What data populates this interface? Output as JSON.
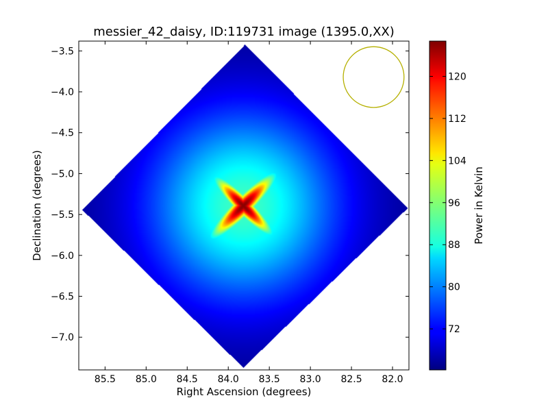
{
  "chart_data": {
    "type": "heatmap",
    "title": "messier_42_daisy, ID:119731 image (1395.0,XX)",
    "xlabel": "Right Ascension (degrees)",
    "ylabel": "Declination (degrees)",
    "xlim": [
      85.82,
      81.8
    ],
    "ylim": [
      -7.4,
      -3.38
    ],
    "x_ticks": [
      85.5,
      85.0,
      84.5,
      84.0,
      83.5,
      83.0,
      82.5,
      82.0
    ],
    "x_tick_labels": [
      "85.5",
      "85.0",
      "84.5",
      "84.0",
      "83.5",
      "83.0",
      "82.5",
      "82.0"
    ],
    "y_ticks": [
      -3.5,
      -4.0,
      -4.5,
      -5.0,
      -5.5,
      -6.0,
      -6.5,
      -7.0
    ],
    "y_tick_labels": [
      "−3.5",
      "−4.0",
      "−4.5",
      "−5.0",
      "−5.5",
      "−6.0",
      "−6.5",
      "−7.0"
    ],
    "colormap": "jet",
    "colorbar": {
      "label": "Power in Kelvin",
      "min": 64.2,
      "max": 126.7,
      "ticks": [
        72,
        80,
        88,
        96,
        104,
        112,
        120
      ],
      "tick_labels": [
        "72",
        "80",
        "88",
        "96",
        "104",
        "112",
        "120"
      ]
    },
    "footprint": {
      "shape": "diamond",
      "vertices": [
        [
          83.8,
          -3.42
        ],
        [
          85.78,
          -5.44
        ],
        [
          83.82,
          -7.37
        ],
        [
          81.82,
          -5.42
        ]
      ]
    },
    "source": {
      "center": [
        83.82,
        -5.39
      ],
      "peak_value": 126.0,
      "background_value": 65.0,
      "arms": [
        {
          "angle_deg": 45,
          "half_length_deg": 0.42,
          "half_width_deg": 0.09
        },
        {
          "angle_deg": -45,
          "half_length_deg": 0.38,
          "half_width_deg": 0.08
        }
      ]
    },
    "beam": {
      "center": [
        82.23,
        -3.82
      ],
      "radius_deg": 0.37,
      "color": "#b5b000"
    },
    "grid": false
  }
}
